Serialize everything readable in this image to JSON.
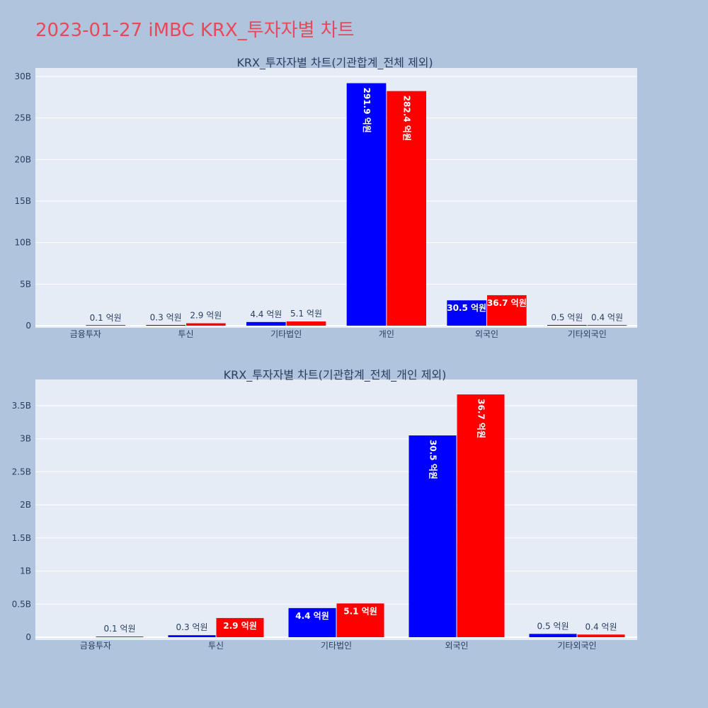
{
  "page": {
    "title": "2023-01-27 iMBC KRX_투자자별 차트",
    "background": "#b0c4de",
    "title_color": "#e8495a"
  },
  "chart_data": [
    {
      "type": "bar",
      "title": "KRX_투자자별 차트(기관합계_전체 제외)",
      "categories": [
        "금융투자",
        "투신",
        "기타법인",
        "개인",
        "외국인",
        "기타외국인"
      ],
      "series": [
        {
          "color": "#0000ff",
          "values": [
            0.0,
            0.03,
            0.44,
            29.19,
            3.05,
            0.05
          ],
          "labels": [
            "",
            "0.3 억원",
            "4.4 억원",
            "291.9 억원",
            "30.5 억원",
            "0.5 억원"
          ]
        },
        {
          "color": "#ff0000",
          "values": [
            0.01,
            0.29,
            0.51,
            28.24,
            3.67,
            0.04
          ],
          "labels": [
            "0.1 억원",
            "2.9 억원",
            "5.1 억원",
            "282.4 억원",
            "36.7 억원",
            "0.4 억원"
          ]
        }
      ],
      "yticks": [
        0,
        5,
        10,
        15,
        20,
        25,
        30
      ],
      "ytick_labels": [
        "0",
        "5B",
        "10B",
        "15B",
        "20B",
        "25B",
        "30B"
      ],
      "ylim": [
        0,
        31
      ],
      "grid": true,
      "plot_background": "#e5ecf6"
    },
    {
      "type": "bar",
      "title": "KRX_투자자별 차트(기관합계_전체_개인 제외)",
      "categories": [
        "금융투자",
        "투신",
        "기타법인",
        "외국인",
        "기타외국인"
      ],
      "series": [
        {
          "color": "#0000ff",
          "values": [
            0.0,
            0.03,
            0.44,
            3.05,
            0.05
          ],
          "labels": [
            "",
            "0.3 억원",
            "4.4 억원",
            "30.5 억원",
            "0.5 억원"
          ]
        },
        {
          "color": "#ff0000",
          "values": [
            0.01,
            0.29,
            0.51,
            3.67,
            0.04
          ],
          "labels": [
            "0.1 억원",
            "2.9 억원",
            "5.1 억원",
            "36.7 억원",
            "0.4 억원"
          ]
        }
      ],
      "yticks": [
        0,
        0.5,
        1,
        1.5,
        2,
        2.5,
        3,
        3.5
      ],
      "ytick_labels": [
        "0",
        "0.5B",
        "1B",
        "1.5B",
        "2B",
        "2.5B",
        "3B",
        "3.5B"
      ],
      "ylim": [
        0,
        3.85
      ],
      "grid": true,
      "plot_background": "#e5ecf6"
    }
  ]
}
